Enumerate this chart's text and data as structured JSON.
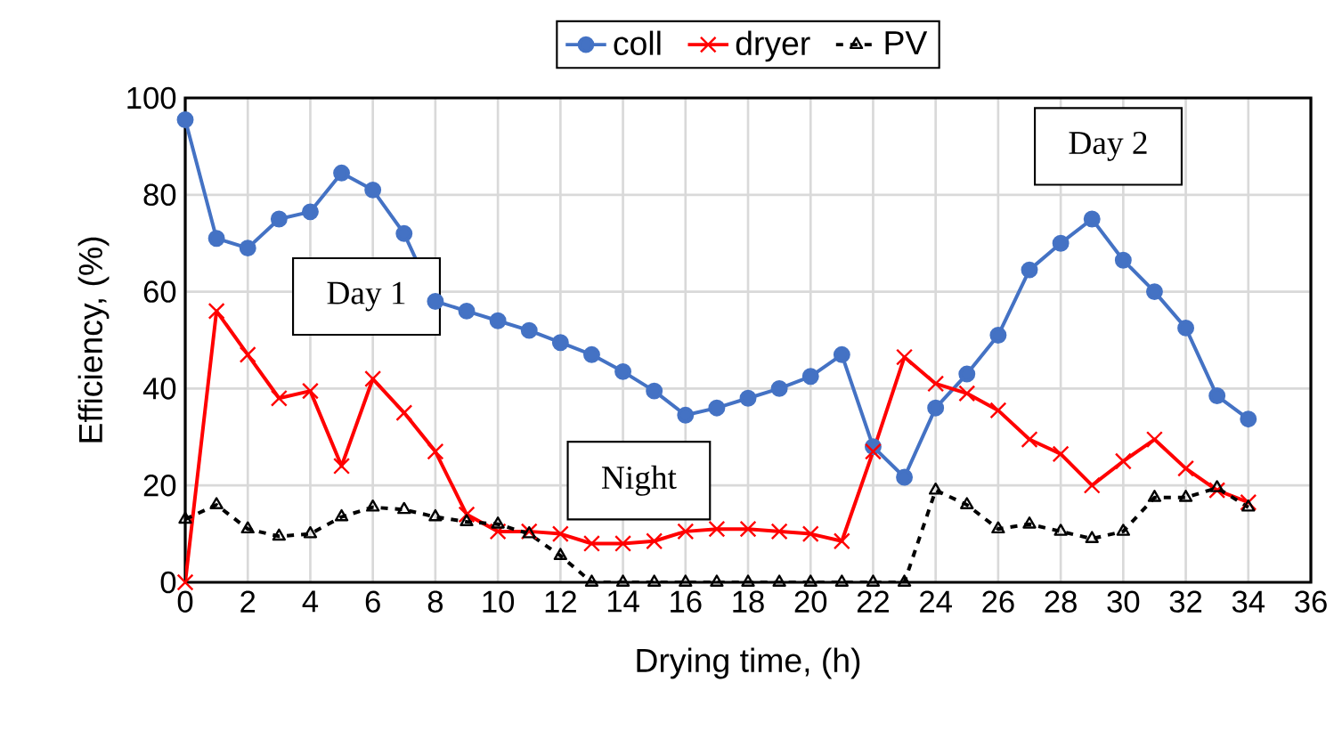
{
  "chart_data": {
    "type": "line",
    "xlabel": "Drying time, (h)",
    "ylabel": "Efficiency, (%)",
    "x": [
      0,
      1,
      2,
      3,
      4,
      5,
      6,
      7,
      8,
      9,
      10,
      11,
      12,
      13,
      14,
      15,
      16,
      17,
      18,
      19,
      20,
      21,
      22,
      23,
      24,
      25,
      26,
      27,
      28,
      29,
      30,
      31,
      32,
      33,
      34
    ],
    "series": [
      {
        "name": "coll",
        "color": "#4472c4",
        "marker": "circle",
        "line_style": "solid",
        "values": [
          95.5,
          71,
          69,
          75,
          76.5,
          84.5,
          81,
          72,
          58,
          56,
          54,
          52,
          49.5,
          47,
          43.5,
          39.5,
          34.5,
          36,
          38,
          40,
          42.5,
          47,
          28,
          21.7,
          36,
          43,
          51,
          64.5,
          70,
          75,
          66.5,
          60,
          52.5,
          38.5,
          33.7
        ]
      },
      {
        "name": "dryer",
        "color": "#ff0000",
        "marker": "cross",
        "line_style": "solid",
        "values": [
          0,
          56,
          47,
          38,
          39.5,
          24,
          42,
          35,
          27,
          14,
          10.5,
          10.5,
          10,
          8,
          8,
          8.5,
          10.5,
          11,
          11,
          10.5,
          10,
          8.5,
          27,
          46.5,
          41,
          39,
          35.5,
          29.5,
          26.5,
          20,
          25,
          29.5,
          23.5,
          19,
          16.5
        ]
      },
      {
        "name": "PV",
        "color": "#000000",
        "marker": "triangle",
        "line_style": "dashed",
        "values": [
          13,
          16,
          11,
          9.5,
          10,
          13.5,
          15.5,
          15,
          13.5,
          12.5,
          12,
          10,
          5.5,
          0,
          0,
          0,
          0,
          0,
          0,
          0,
          0,
          0,
          0,
          0,
          19,
          16,
          11,
          12,
          10.5,
          9,
          10.5,
          17.5,
          17.5,
          19.5,
          15.5
        ]
      }
    ],
    "xlim": [
      0,
      36
    ],
    "xticks": [
      0,
      2,
      4,
      6,
      8,
      10,
      12,
      14,
      16,
      18,
      20,
      22,
      24,
      26,
      28,
      30,
      32,
      34,
      36
    ],
    "ylim": [
      0,
      100
    ],
    "yticks": [
      0,
      20,
      40,
      60,
      80,
      100
    ],
    "grid": true,
    "legend": "top",
    "annotations": [
      "Day 1",
      "Night",
      "Day 2"
    ]
  }
}
